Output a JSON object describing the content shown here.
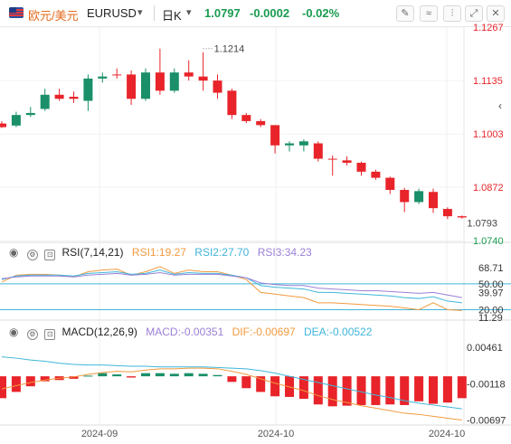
{
  "toolbar": {
    "pair_name": "欧元/美元",
    "symbol": "EURUSD",
    "timeframe": "日K",
    "last_price": "1.0797",
    "change": "-0.0002",
    "change_pct": "-0.02%",
    "price_color": "#1a9b50",
    "buttons": [
      "draw-tool-icon",
      "indicator-icon",
      "candle-type-icon",
      "fullscreen-icon",
      "close-icon"
    ]
  },
  "rsi_header": {
    "label": "RSI(7,14,21)",
    "rsi1": "RSI1:19.27",
    "rsi2": "RSI2:27.70",
    "rsi3": "RSI3:34.23",
    "colors": {
      "rsi1": "#f29a3f",
      "rsi2": "#3fb6d9",
      "rsi3": "#9b80d6"
    }
  },
  "macd_header": {
    "label": "MACD(12,26,9)",
    "macd": "MACD:-0.00351",
    "dif": "DIF:-0.00697",
    "dea": "DEA:-0.00522",
    "colors": {
      "macd": "#9b80d6",
      "dif": "#f29a3f",
      "dea": "#3fb6d9"
    }
  },
  "chart_data": [
    {
      "type": "candlestick",
      "title": "EURUSD 日K",
      "x_ticks": [
        "2024-09",
        "2024-10",
        "2024-10"
      ],
      "x_tick_index": [
        8,
        23,
        38
      ],
      "ylim": [
        1.074,
        1.1267
      ],
      "y_ticks": [
        "1.1267",
        "1.1135",
        "1.1003",
        "1.0872",
        "1.0740"
      ],
      "annotations": [
        {
          "text": "1.1214",
          "index": 14,
          "value": 1.1214
        },
        {
          "text": "1.0793",
          "index": 36,
          "value": 1.0793
        }
      ],
      "up_color": "#1a8f6a",
      "down_color": "#e8242a",
      "candles": [
        {
          "o": 1.1029,
          "h": 1.1035,
          "l": 1.1018,
          "c": 1.102
        },
        {
          "o": 1.1024,
          "h": 1.1058,
          "l": 1.102,
          "c": 1.105
        },
        {
          "o": 1.105,
          "h": 1.107,
          "l": 1.1045,
          "c": 1.1055
        },
        {
          "o": 1.1065,
          "h": 1.1115,
          "l": 1.106,
          "c": 1.11
        },
        {
          "o": 1.11,
          "h": 1.1115,
          "l": 1.1085,
          "c": 1.109
        },
        {
          "o": 1.1095,
          "h": 1.1108,
          "l": 1.108,
          "c": 1.109
        },
        {
          "o": 1.1085,
          "h": 1.115,
          "l": 1.106,
          "c": 1.114
        },
        {
          "o": 1.114,
          "h": 1.1155,
          "l": 1.113,
          "c": 1.1145
        },
        {
          "o": 1.115,
          "h": 1.1165,
          "l": 1.114,
          "c": 1.1148
        },
        {
          "o": 1.115,
          "h": 1.116,
          "l": 1.1075,
          "c": 1.109
        },
        {
          "o": 1.109,
          "h": 1.1165,
          "l": 1.1085,
          "c": 1.1155
        },
        {
          "o": 1.1155,
          "h": 1.1214,
          "l": 1.11,
          "c": 1.111
        },
        {
          "o": 1.111,
          "h": 1.1165,
          "l": 1.1105,
          "c": 1.1155
        },
        {
          "o": 1.1155,
          "h": 1.1185,
          "l": 1.1135,
          "c": 1.1145
        },
        {
          "o": 1.1145,
          "h": 1.1205,
          "l": 1.111,
          "c": 1.1135
        },
        {
          "o": 1.1135,
          "h": 1.115,
          "l": 1.109,
          "c": 1.1105
        },
        {
          "o": 1.111,
          "h": 1.1115,
          "l": 1.104,
          "c": 1.105
        },
        {
          "o": 1.105,
          "h": 1.1055,
          "l": 1.103,
          "c": 1.1035
        },
        {
          "o": 1.1035,
          "h": 1.104,
          "l": 1.102,
          "c": 1.1025
        },
        {
          "o": 1.1025,
          "h": 1.1025,
          "l": 1.0955,
          "c": 1.0975
        },
        {
          "o": 1.0975,
          "h": 1.0985,
          "l": 1.096,
          "c": 1.098
        },
        {
          "o": 1.0975,
          "h": 1.099,
          "l": 1.096,
          "c": 1.0985
        },
        {
          "o": 1.098,
          "h": 1.0985,
          "l": 1.0935,
          "c": 1.0942
        },
        {
          "o": 1.0942,
          "h": 1.095,
          "l": 1.09,
          "c": 1.094
        },
        {
          "o": 1.0938,
          "h": 1.0948,
          "l": 1.0925,
          "c": 1.0932
        },
        {
          "o": 1.0932,
          "h": 1.0935,
          "l": 1.09,
          "c": 1.091
        },
        {
          "o": 1.091,
          "h": 1.0915,
          "l": 1.089,
          "c": 1.0895
        },
        {
          "o": 1.0895,
          "h": 1.0898,
          "l": 1.0855,
          "c": 1.0865
        },
        {
          "o": 1.0865,
          "h": 1.087,
          "l": 1.081,
          "c": 1.0835
        },
        {
          "o": 1.0835,
          "h": 1.0868,
          "l": 1.083,
          "c": 1.0862
        },
        {
          "o": 1.086,
          "h": 1.0868,
          "l": 1.0808,
          "c": 1.082
        },
        {
          "o": 1.0818,
          "h": 1.0822,
          "l": 1.0793,
          "c": 1.08
        },
        {
          "o": 1.08,
          "h": 1.0802,
          "l": 1.0794,
          "c": 1.0797
        }
      ]
    },
    {
      "type": "line",
      "title": "RSI(7,14,21)",
      "ylim": [
        10,
        75
      ],
      "y_ticks": [
        "68.71",
        "50.00",
        "39.97",
        "20.00",
        "11.29"
      ],
      "y_tick_values": [
        68.71,
        50.0,
        39.97,
        20.0,
        11.29
      ],
      "reference_lines": [
        50,
        20
      ],
      "reference_color": "#3fb6d9",
      "series": [
        {
          "name": "RSI1",
          "color": "#f29a3f",
          "values": [
            52,
            60,
            61,
            61,
            60,
            58,
            64,
            66,
            67,
            60,
            64,
            70,
            62,
            66,
            64,
            64,
            60,
            55,
            40,
            38,
            36,
            34,
            28,
            28,
            27,
            26,
            25,
            24,
            22,
            20,
            28,
            20,
            19
          ]
        },
        {
          "name": "RSI2",
          "color": "#3fb6d9",
          "values": [
            55,
            59,
            60,
            60,
            60,
            59,
            62,
            63,
            64,
            61,
            62,
            66,
            61,
            63,
            62,
            62,
            60,
            57,
            48,
            46,
            45,
            44,
            40,
            40,
            39,
            38,
            37,
            36,
            34,
            33,
            35,
            30,
            28
          ]
        },
        {
          "name": "RSI3",
          "color": "#9b80d6",
          "values": [
            56,
            58,
            59,
            59,
            59,
            58,
            60,
            61,
            62,
            60,
            61,
            63,
            60,
            61,
            61,
            61,
            59,
            57,
            51,
            49,
            48,
            48,
            45,
            44,
            43,
            42,
            42,
            41,
            40,
            39,
            40,
            37,
            34
          ]
        }
      ]
    },
    {
      "type": "bar",
      "title": "MACD(12,26,9)",
      "ylim": [
        -0.0075,
        0.0058
      ],
      "y_ticks": [
        "0.00461",
        "-0.00118",
        "-0.00697"
      ],
      "y_tick_values": [
        0.00461,
        -0.00118,
        -0.00697
      ],
      "histogram": {
        "name": "MACD",
        "up_color": "#1a8f6a",
        "down_color": "#e8242a",
        "values": [
          -0.0035,
          -0.0025,
          -0.0016,
          -0.0008,
          -0.0006,
          -0.0004,
          0.0001,
          0.0005,
          0.0003,
          -0.0002,
          0.0005,
          0.0005,
          0.0004,
          0.0005,
          0.0004,
          0.0002,
          -0.0009,
          -0.0019,
          -0.0025,
          -0.0032,
          -0.0033,
          -0.0036,
          -0.0045,
          -0.0048,
          -0.0047,
          -0.0046,
          -0.0046,
          -0.0045,
          -0.0046,
          -0.004,
          -0.0044,
          -0.0042,
          -0.0035
        ]
      },
      "series": [
        {
          "name": "DIF",
          "color": "#f29a3f",
          "values": [
            -0.002,
            -0.0015,
            -0.001,
            -0.0006,
            -0.0003,
            -0.0001,
            0.0003,
            0.0006,
            0.0008,
            0.0007,
            0.001,
            0.0012,
            0.0012,
            0.0013,
            0.0013,
            0.0012,
            0.0008,
            0.0003,
            -0.0004,
            -0.0011,
            -0.0017,
            -0.0023,
            -0.0031,
            -0.0037,
            -0.0042,
            -0.0047,
            -0.0051,
            -0.0055,
            -0.0059,
            -0.0061,
            -0.0064,
            -0.0067,
            -0.007
          ]
        },
        {
          "name": "DEA",
          "color": "#3fb6d9",
          "values": [
            0.0031,
            0.0029,
            0.0026,
            0.0024,
            0.0021,
            0.0019,
            0.0018,
            0.0018,
            0.0017,
            0.0016,
            0.0016,
            0.0015,
            0.0015,
            0.0015,
            0.0015,
            0.0014,
            0.0013,
            0.0012,
            0.0009,
            0.0005,
            0.0,
            -0.0005,
            -0.001,
            -0.0015,
            -0.002,
            -0.0025,
            -0.003,
            -0.0034,
            -0.0039,
            -0.0043,
            -0.0046,
            -0.0049,
            -0.0052
          ]
        }
      ]
    }
  ]
}
